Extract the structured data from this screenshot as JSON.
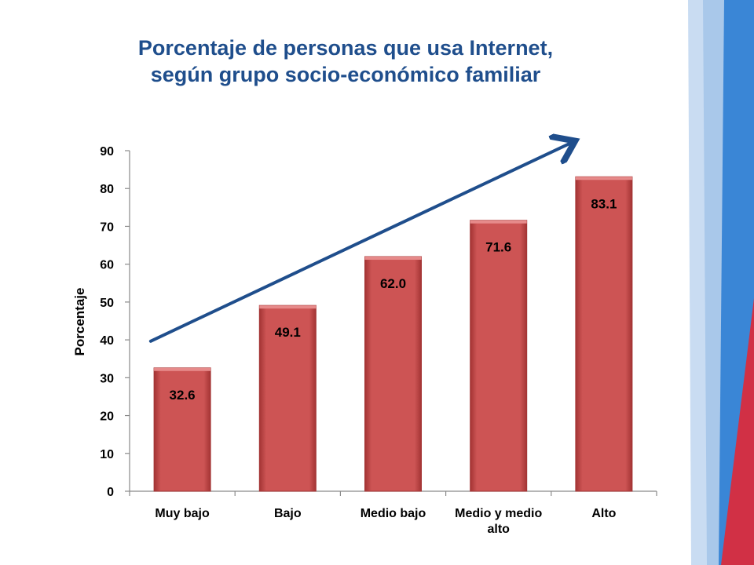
{
  "slide": {
    "title_line1": "Porcentaje de personas que usa Internet,",
    "title_line2": "según grupo socio-económico familiar"
  },
  "colors": {
    "title": "#1f4e8c",
    "bar_fill": "#cd5454",
    "bar_edge": "#a33434",
    "trend_arrow": "#1f4e8c",
    "decor_light_blue": "#a9c8ea",
    "decor_blue": "#3a86d6",
    "decor_red": "#d13045"
  },
  "chart_data": {
    "type": "bar",
    "categories": [
      "Muy bajo",
      "Bajo",
      "Medio bajo",
      "Medio y medio alto",
      "Alto"
    ],
    "values": [
      32.6,
      49.1,
      62.0,
      71.6,
      83.1
    ],
    "data_labels": [
      "32.6",
      "49.1",
      "62.0",
      "71.6",
      "83.1"
    ],
    "ylabel": "Porcentaje",
    "xlabel": "",
    "ylim": [
      0,
      90
    ],
    "yticks": [
      0,
      10,
      20,
      30,
      40,
      50,
      60,
      70,
      80,
      90
    ],
    "grid": false,
    "legend": "none",
    "trend_arrow": true
  }
}
